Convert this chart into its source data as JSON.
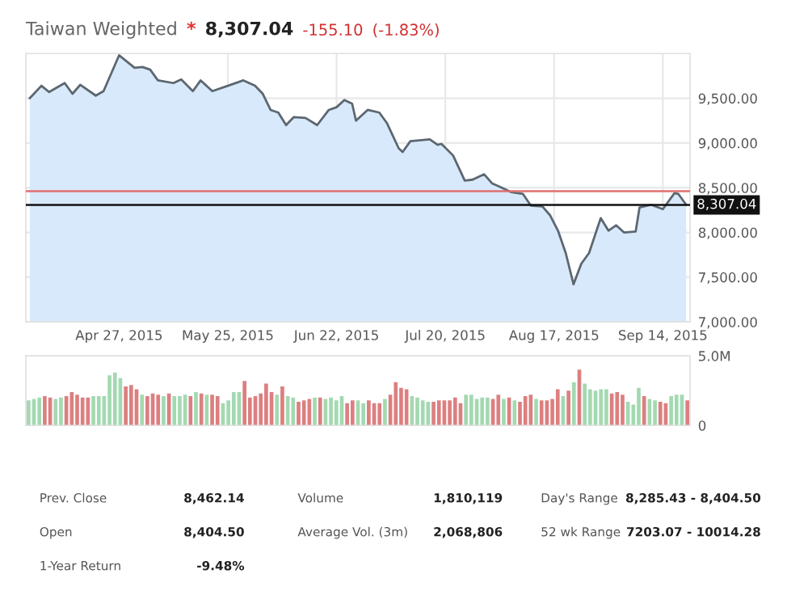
{
  "chart_data": [
    {
      "type": "area",
      "title": "Taiwan Weighted",
      "annotations": [
        "*",
        "8,307.04",
        "-155.10",
        "(-1.83%)"
      ],
      "x": [
        "2015-04-04",
        "2015-04-07",
        "2015-04-09",
        "2015-04-13",
        "2015-04-15",
        "2015-04-17",
        "2015-04-21",
        "2015-04-23",
        "2015-04-27",
        "2015-05-01",
        "2015-05-03",
        "2015-05-05",
        "2015-05-07",
        "2015-05-11",
        "2015-05-13",
        "2015-05-16",
        "2015-05-18",
        "2015-05-21",
        "2015-05-25",
        "2015-05-29",
        "2015-06-01",
        "2015-06-03",
        "2015-06-05",
        "2015-06-07",
        "2015-06-09",
        "2015-06-11",
        "2015-06-14",
        "2015-06-17",
        "2015-06-20",
        "2015-06-22",
        "2015-06-24",
        "2015-06-26",
        "2015-06-27",
        "2015-06-30",
        "2015-07-03",
        "2015-07-05",
        "2015-07-08",
        "2015-07-09",
        "2015-07-11",
        "2015-07-16",
        "2015-07-18",
        "2015-07-19",
        "2015-07-22",
        "2015-07-25",
        "2015-07-27",
        "2015-07-30",
        "2015-08-01",
        "2015-08-03",
        "2015-08-06",
        "2015-08-09",
        "2015-08-11",
        "2015-08-14",
        "2015-08-16",
        "2015-08-18",
        "2015-08-20",
        "2015-08-22",
        "2015-08-24",
        "2015-08-26",
        "2015-08-29",
        "2015-08-31",
        "2015-09-02",
        "2015-09-04",
        "2015-09-07",
        "2015-09-08",
        "2015-09-11",
        "2015-09-14",
        "2015-09-17",
        "2015-09-18",
        "2015-09-20"
      ],
      "series": [
        {
          "color": "#5c6770",
          "values": [
            9500,
            9640,
            9570,
            9670,
            9550,
            9650,
            9530,
            9580,
            9980,
            9840,
            9850,
            9820,
            9700,
            9670,
            9710,
            9580,
            9700,
            9580,
            9640,
            9700,
            9640,
            9550,
            9370,
            9340,
            9200,
            9290,
            9280,
            9200,
            9370,
            9400,
            9480,
            9440,
            9250,
            9370,
            9340,
            9220,
            8940,
            8900,
            9020,
            9040,
            8980,
            8990,
            8860,
            8580,
            8590,
            8650,
            8550,
            8510,
            8450,
            8430,
            8300,
            8290,
            8190,
            8020,
            7770,
            7420,
            7650,
            7770,
            8160,
            8020,
            8080,
            8000,
            8010,
            8280,
            8310,
            8260,
            8440,
            8430,
            8310
          ]
        }
      ],
      "xlim": [
        "2015-04-03",
        "2015-09-21"
      ],
      "xticks": [
        {
          "value": "2015-04-27",
          "label": "Apr 27, 2015"
        },
        {
          "value": "2015-05-25",
          "label": "May 25, 2015"
        },
        {
          "value": "2015-06-22",
          "label": "Jun 22, 2015"
        },
        {
          "value": "2015-07-20",
          "label": "Jul 20, 2015"
        },
        {
          "value": "2015-08-17",
          "label": "Aug 17, 2015"
        },
        {
          "value": "2015-09-14",
          "label": "Sep 14, 2015"
        }
      ],
      "ylim": [
        7000,
        10000
      ],
      "yticks": [
        {
          "value": 7000,
          "label": "7,000.00"
        },
        {
          "value": 7500,
          "label": "7,500.00"
        },
        {
          "value": 8000,
          "label": "8,000.00"
        },
        {
          "value": 8500,
          "label": "8,500.00"
        },
        {
          "value": 9000,
          "label": "9,000.00"
        },
        {
          "value": 9500,
          "label": "9,500.00"
        }
      ],
      "ref_lines": [
        {
          "axis": "y",
          "value": 8462.14,
          "color": "#e07070"
        },
        {
          "axis": "y",
          "value": 8307.04,
          "label": "8,307.04",
          "color": "#111111"
        }
      ],
      "grid": true
    },
    {
      "type": "bar",
      "categories": [
        null,
        null,
        null,
        null,
        null,
        null,
        null,
        null,
        null,
        null,
        null,
        null,
        null,
        null,
        null,
        null,
        null,
        null,
        null,
        null,
        null,
        null,
        null,
        null,
        null,
        null,
        null,
        null,
        null,
        null,
        null,
        null,
        null,
        null,
        null,
        null,
        null,
        null,
        null,
        null,
        null,
        null,
        null,
        null,
        null,
        null,
        null,
        null,
        null,
        null,
        null,
        null,
        null,
        null,
        null,
        null,
        null,
        null,
        null,
        null,
        null,
        null,
        null,
        null,
        null,
        null,
        null,
        null,
        null,
        null,
        null,
        null,
        null,
        null,
        null,
        null,
        null,
        null,
        null,
        null,
        null,
        null,
        null,
        null,
        null,
        null,
        null,
        null,
        null,
        null,
        null,
        null,
        null,
        null,
        null,
        null,
        null,
        null,
        null,
        null,
        null,
        null,
        null,
        null,
        null,
        null,
        null,
        null,
        null,
        null,
        null,
        null,
        null,
        null,
        null,
        null,
        null,
        null,
        null,
        null,
        null,
        null,
        null
      ],
      "values": [
        1.8,
        1.9,
        2.0,
        2.1,
        2.0,
        1.9,
        2.0,
        2.1,
        2.4,
        2.2,
        2.0,
        2.0,
        2.1,
        2.1,
        2.1,
        3.6,
        3.8,
        3.4,
        2.8,
        2.9,
        2.6,
        2.2,
        2.1,
        2.3,
        2.2,
        2.1,
        2.3,
        2.1,
        2.1,
        2.2,
        2.1,
        2.4,
        2.3,
        2.2,
        2.2,
        2.1,
        1.6,
        1.8,
        2.4,
        2.4,
        3.2,
        2.0,
        2.1,
        2.3,
        3.0,
        2.4,
        2.2,
        2.8,
        2.1,
        2.0,
        1.7,
        1.8,
        1.9,
        2.0,
        2.0,
        1.9,
        2.0,
        1.8,
        2.1,
        1.6,
        1.8,
        1.8,
        1.6,
        1.8,
        1.6,
        1.6,
        1.9,
        2.2,
        3.1,
        2.7,
        2.6,
        2.1,
        2.0,
        1.8,
        1.7,
        1.7,
        1.8,
        1.8,
        1.8,
        2.0,
        1.6,
        2.2,
        2.2,
        1.9,
        2.0,
        2.0,
        1.9,
        2.2,
        1.9,
        2.0,
        1.8,
        1.7,
        2.1,
        2.2,
        1.9,
        1.8,
        1.8,
        1.9,
        2.6,
        2.1,
        2.5,
        3.1,
        4.0,
        3.0,
        2.6,
        2.5,
        2.6,
        2.6,
        2.3,
        2.4,
        2.2,
        1.7,
        1.5,
        2.7,
        2.1,
        1.9,
        1.8,
        1.7,
        1.6,
        2.1,
        2.2,
        2.2,
        1.8
      ],
      "colors": [
        "#a3d9b1",
        "#a3d9b1",
        "#a3d9b1",
        "#dc7f80",
        "#dc7f80",
        "#a3d9b1",
        "#a3d9b1",
        "#dc7f80",
        "#dc7f80",
        "#dc7f80",
        "#dc7f80",
        "#dc7f80",
        "#a3d9b1",
        "#a3d9b1",
        "#a3d9b1",
        "#a3d9b1",
        "#a3d9b1",
        "#a3d9b1",
        "#dc7f80",
        "#dc7f80",
        "#dc7f80",
        "#a3d9b1",
        "#dc7f80",
        "#dc7f80",
        "#dc7f80",
        "#a3d9b1",
        "#dc7f80",
        "#a3d9b1",
        "#a3d9b1",
        "#a3d9b1",
        "#dc7f80",
        "#a3d9b1",
        "#dc7f80",
        "#a3d9b1",
        "#dc7f80",
        "#dc7f80",
        "#a3d9b1",
        "#a3d9b1",
        "#a3d9b1",
        "#a3d9b1",
        "#dc7f80",
        "#dc7f80",
        "#dc7f80",
        "#dc7f80",
        "#dc7f80",
        "#dc7f80",
        "#a3d9b1",
        "#dc7f80",
        "#a3d9b1",
        "#a3d9b1",
        "#dc7f80",
        "#dc7f80",
        "#dc7f80",
        "#a3d9b1",
        "#dc7f80",
        "#a3d9b1",
        "#a3d9b1",
        "#a3d9b1",
        "#a3d9b1",
        "#dc7f80",
        "#dc7f80",
        "#a3d9b1",
        "#a3d9b1",
        "#dc7f80",
        "#dc7f80",
        "#dc7f80",
        "#a3d9b1",
        "#dc7f80",
        "#dc7f80",
        "#dc7f80",
        "#dc7f80",
        "#a3d9b1",
        "#a3d9b1",
        "#a3d9b1",
        "#a3d9b1",
        "#dc7f80",
        "#dc7f80",
        "#dc7f80",
        "#dc7f80",
        "#dc7f80",
        "#dc7f80",
        "#a3d9b1",
        "#a3d9b1",
        "#a3d9b1",
        "#a3d9b1",
        "#a3d9b1",
        "#dc7f80",
        "#dc7f80",
        "#a3d9b1",
        "#dc7f80",
        "#a3d9b1",
        "#dc7f80",
        "#dc7f80",
        "#dc7f80",
        "#a3d9b1",
        "#dc7f80",
        "#dc7f80",
        "#dc7f80",
        "#dc7f80",
        "#a3d9b1",
        "#dc7f80",
        "#a3d9b1",
        "#dc7f80",
        "#a3d9b1",
        "#a3d9b1",
        "#a3d9b1",
        "#a3d9b1",
        "#a3d9b1",
        "#dc7f80",
        "#dc7f80",
        "#dc7f80",
        "#a3d9b1",
        "#a3d9b1",
        "#a3d9b1",
        "#dc7f80",
        "#a3d9b1",
        "#a3d9b1",
        "#dc7f80",
        "#dc7f80",
        "#a3d9b1",
        "#a3d9b1",
        "#a3d9b1",
        "#dc7f80"
      ],
      "ylim": [
        0,
        5
      ],
      "yticks": [
        0,
        {
          "value": 5,
          "label": "5.0M"
        }
      ],
      "tick_labels": "y"
    },
    {
      "type": "other",
      "annotations": [
        "Prev. Close",
        "8,462.14",
        "Volume",
        "1,810,119",
        "Day's Range",
        "8,285.43 - 8,404.50",
        "Open",
        "8,404.50",
        "Average Vol. (3m)",
        "2,068,806",
        "52 wk Range",
        "7203.07 - 10014.28",
        "1-Year Return",
        "-9.48%"
      ]
    }
  ]
}
